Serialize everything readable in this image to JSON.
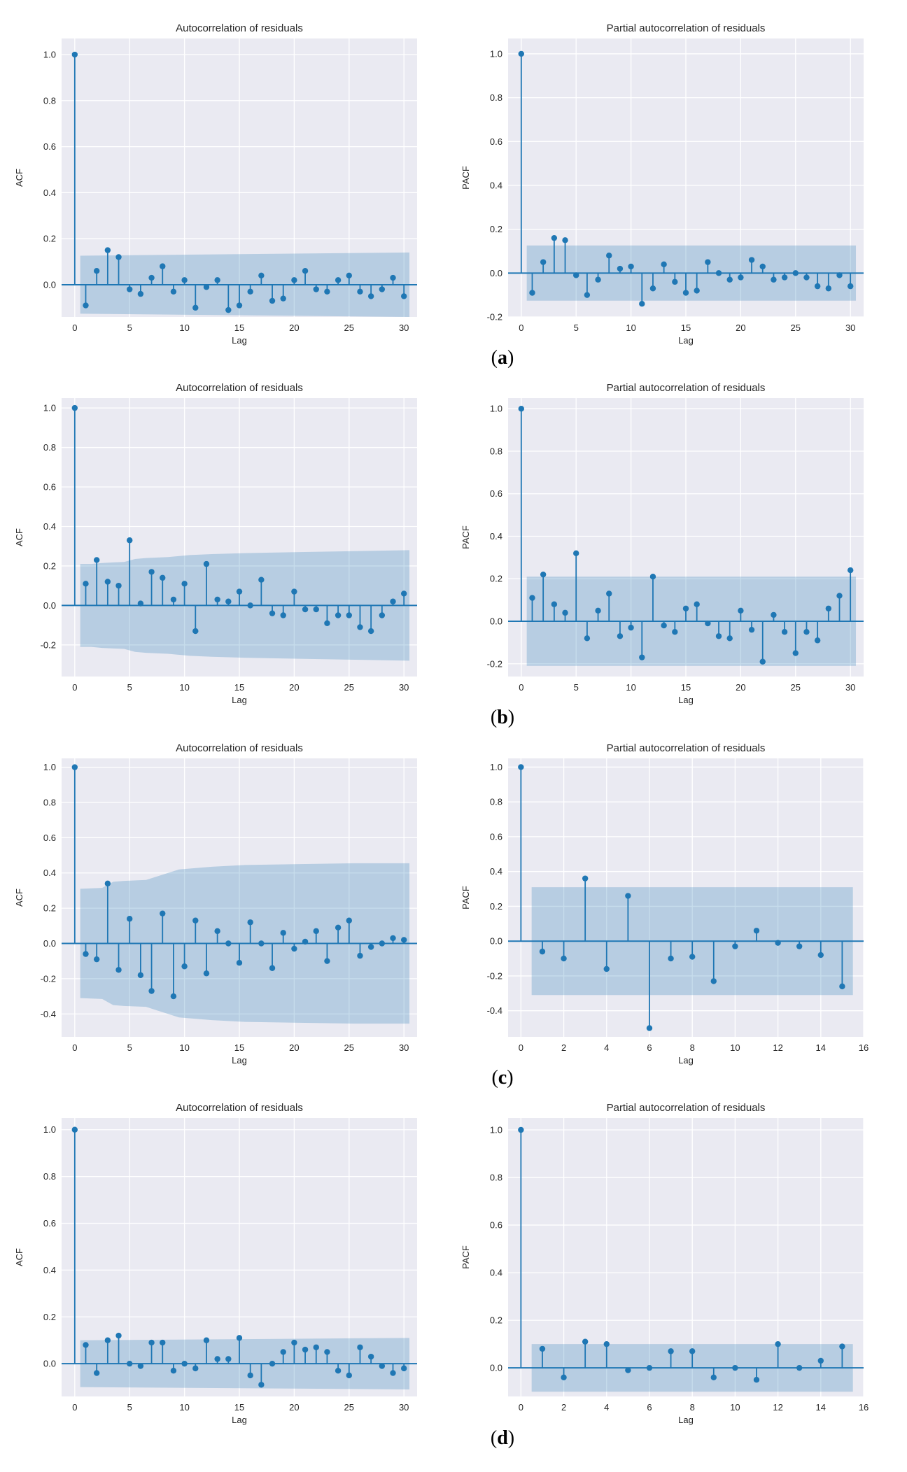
{
  "colors": {
    "stem": "#1f77b4",
    "band": "#a9c4de",
    "axes_bg": "#eaeaf2",
    "grid": "#ffffff",
    "text": "#262626"
  },
  "panel_labels": [
    {
      "paren_open": "(",
      "letter": "a",
      "paren_close": ")"
    },
    {
      "paren_open": "(",
      "letter": "b",
      "paren_close": ")"
    },
    {
      "paren_open": "(",
      "letter": "c",
      "paren_close": ")"
    },
    {
      "paren_open": "(",
      "letter": "d",
      "paren_close": ")"
    }
  ],
  "chart_data": [
    {
      "type": "stem",
      "title": "Autocorrelation of residuals",
      "xlabel": "Lag",
      "ylabel": "ACF",
      "xlim": [
        -1.2,
        31.2
      ],
      "ylim": [
        -0.14,
        1.07
      ],
      "xticks": [
        0,
        5,
        10,
        15,
        20,
        25,
        30
      ],
      "yticks": [
        0.0,
        0.2,
        0.4,
        0.6,
        0.8,
        1.0
      ],
      "lags": [
        0,
        1,
        2,
        3,
        4,
        5,
        6,
        7,
        8,
        9,
        10,
        11,
        12,
        13,
        14,
        15,
        16,
        17,
        18,
        19,
        20,
        21,
        22,
        23,
        24,
        25,
        26,
        27,
        28,
        29,
        30
      ],
      "values": [
        1.0,
        -0.09,
        0.06,
        0.15,
        0.12,
        -0.02,
        -0.04,
        0.03,
        0.08,
        -0.03,
        0.02,
        -0.1,
        -0.01,
        0.02,
        -0.11,
        -0.09,
        -0.03,
        0.04,
        -0.07,
        -0.06,
        0.02,
        0.06,
        -0.02,
        -0.03,
        0.02,
        0.04,
        -0.03,
        -0.05,
        -0.02,
        0.03,
        -0.05
      ],
      "band_x": [
        0.5,
        30.5
      ],
      "band_upper": [
        0.126,
        0.14
      ],
      "band_lower": [
        -0.126,
        -0.14
      ]
    },
    {
      "type": "stem",
      "title": "Partial autocorrelation of residuals",
      "xlabel": "Lag",
      "ylabel": "PACF",
      "xlim": [
        -1.2,
        31.2
      ],
      "ylim": [
        -0.2,
        1.07
      ],
      "xticks": [
        0,
        5,
        10,
        15,
        20,
        25,
        30
      ],
      "yticks": [
        -0.2,
        0.0,
        0.2,
        0.4,
        0.6,
        0.8,
        1.0
      ],
      "lags": [
        0,
        1,
        2,
        3,
        4,
        5,
        6,
        7,
        8,
        9,
        10,
        11,
        12,
        13,
        14,
        15,
        16,
        17,
        18,
        19,
        20,
        21,
        22,
        23,
        24,
        25,
        26,
        27,
        28,
        29,
        30
      ],
      "values": [
        1.0,
        -0.09,
        0.05,
        0.16,
        0.15,
        -0.01,
        -0.1,
        -0.03,
        0.08,
        0.02,
        0.03,
        -0.14,
        -0.07,
        0.04,
        -0.04,
        -0.09,
        -0.08,
        0.05,
        0.0,
        -0.03,
        -0.02,
        0.06,
        0.03,
        -0.03,
        -0.02,
        0.0,
        -0.02,
        -0.06,
        -0.07,
        -0.01,
        -0.06
      ],
      "band_x": [
        0.5,
        30.5
      ],
      "band_upper": [
        0.126,
        0.126
      ],
      "band_lower": [
        -0.126,
        -0.126
      ]
    },
    {
      "type": "stem",
      "title": "Autocorrelation of residuals",
      "xlabel": "Lag",
      "ylabel": "ACF",
      "xlim": [
        -1.2,
        31.2
      ],
      "ylim": [
        -0.36,
        1.05
      ],
      "xticks": [
        0,
        5,
        10,
        15,
        20,
        25,
        30
      ],
      "yticks": [
        -0.2,
        0.0,
        0.2,
        0.4,
        0.6,
        0.8,
        1.0
      ],
      "lags": [
        0,
        1,
        2,
        3,
        4,
        5,
        6,
        7,
        8,
        9,
        10,
        11,
        12,
        13,
        14,
        15,
        16,
        17,
        18,
        19,
        20,
        21,
        22,
        23,
        24,
        25,
        26,
        27,
        28,
        29,
        30
      ],
      "values": [
        1.0,
        0.11,
        0.23,
        0.12,
        0.1,
        0.33,
        0.01,
        0.17,
        0.14,
        0.03,
        0.11,
        -0.13,
        0.21,
        0.03,
        0.02,
        0.07,
        0.0,
        0.13,
        -0.04,
        -0.05,
        0.07,
        -0.02,
        -0.02,
        -0.09,
        -0.05,
        -0.05,
        -0.11,
        -0.13,
        -0.05,
        0.02,
        0.06
      ],
      "band_x": [
        0.5,
        1.5,
        2.5,
        3.5,
        4.5,
        5.5,
        6.5,
        8.5,
        10.5,
        12.5,
        15.5,
        20.5,
        25.5,
        30.5
      ],
      "band_upper": [
        0.21,
        0.21,
        0.215,
        0.218,
        0.22,
        0.235,
        0.24,
        0.245,
        0.255,
        0.26,
        0.265,
        0.27,
        0.275,
        0.28
      ],
      "band_lower": [
        -0.21,
        -0.21,
        -0.215,
        -0.218,
        -0.22,
        -0.235,
        -0.24,
        -0.245,
        -0.255,
        -0.26,
        -0.265,
        -0.27,
        -0.275,
        -0.28
      ]
    },
    {
      "type": "stem",
      "title": "Partial autocorrelation of residuals",
      "xlabel": "Lag",
      "ylabel": "PACF",
      "xlim": [
        -1.2,
        31.2
      ],
      "ylim": [
        -0.26,
        1.05
      ],
      "xticks": [
        0,
        5,
        10,
        15,
        20,
        25,
        30
      ],
      "yticks": [
        -0.2,
        0.0,
        0.2,
        0.4,
        0.6,
        0.8,
        1.0
      ],
      "lags": [
        0,
        1,
        2,
        3,
        4,
        5,
        6,
        7,
        8,
        9,
        10,
        11,
        12,
        13,
        14,
        15,
        16,
        17,
        18,
        19,
        20,
        21,
        22,
        23,
        24,
        25,
        26,
        27,
        28,
        29,
        30
      ],
      "values": [
        1.0,
        0.11,
        0.22,
        0.08,
        0.04,
        0.32,
        -0.08,
        0.05,
        0.13,
        -0.07,
        -0.03,
        -0.17,
        0.21,
        -0.02,
        -0.05,
        0.06,
        0.08,
        -0.01,
        -0.07,
        -0.08,
        0.05,
        -0.04,
        -0.19,
        0.03,
        -0.05,
        -0.15,
        -0.05,
        -0.09,
        0.06,
        0.12,
        0.24
      ],
      "band_x": [
        0.5,
        30.5
      ],
      "band_upper": [
        0.21,
        0.21
      ],
      "band_lower": [
        -0.21,
        -0.21
      ]
    },
    {
      "type": "stem",
      "title": "Autocorrelation of residuals",
      "xlabel": "Lag",
      "ylabel": "ACF",
      "xlim": [
        -1.2,
        31.2
      ],
      "ylim": [
        -0.53,
        1.05
      ],
      "xticks": [
        0,
        5,
        10,
        15,
        20,
        25,
        30
      ],
      "yticks": [
        -0.4,
        -0.2,
        0.0,
        0.2,
        0.4,
        0.6,
        0.8,
        1.0
      ],
      "lags": [
        0,
        1,
        2,
        3,
        4,
        5,
        6,
        7,
        8,
        9,
        10,
        11,
        12,
        13,
        14,
        15,
        16,
        17,
        18,
        19,
        20,
        21,
        22,
        23,
        24,
        25,
        26,
        27,
        28,
        29,
        30
      ],
      "values": [
        1.0,
        -0.06,
        -0.09,
        0.34,
        -0.15,
        0.14,
        -0.18,
        -0.27,
        0.17,
        -0.3,
        -0.13,
        0.13,
        -0.17,
        0.07,
        0.0,
        -0.11,
        0.12,
        0.0,
        -0.14,
        0.06,
        -0.03,
        0.01,
        0.07,
        -0.1,
        0.09,
        0.13,
        -0.07,
        -0.02,
        0.0,
        0.03,
        0.02
      ],
      "band_x": [
        0.5,
        2.5,
        3.5,
        4.5,
        6.5,
        7.5,
        8.5,
        9.5,
        12.5,
        15.5,
        20.5,
        25.5,
        30.5
      ],
      "band_upper": [
        0.31,
        0.315,
        0.35,
        0.355,
        0.36,
        0.38,
        0.4,
        0.42,
        0.435,
        0.445,
        0.45,
        0.455,
        0.455
      ],
      "band_lower": [
        -0.31,
        -0.315,
        -0.35,
        -0.355,
        -0.36,
        -0.38,
        -0.4,
        -0.42,
        -0.435,
        -0.445,
        -0.45,
        -0.455,
        -0.455
      ]
    },
    {
      "type": "stem",
      "title": "Partial autocorrelation of residuals",
      "xlabel": "Lag",
      "ylabel": "PACF",
      "xlim": [
        -0.6,
        16.0
      ],
      "ylim": [
        -0.55,
        1.05
      ],
      "xticks": [
        0,
        2,
        4,
        6,
        8,
        10,
        12,
        14,
        16
      ],
      "yticks": [
        -0.4,
        -0.2,
        0.0,
        0.2,
        0.4,
        0.6,
        0.8,
        1.0
      ],
      "lags": [
        0,
        1,
        2,
        3,
        4,
        5,
        6,
        7,
        8,
        9,
        10,
        11,
        12,
        13,
        14,
        15
      ],
      "values": [
        1.0,
        -0.06,
        -0.1,
        0.36,
        -0.16,
        0.26,
        -0.5,
        -0.1,
        -0.09,
        -0.23,
        -0.03,
        0.06,
        -0.01,
        -0.03,
        -0.08,
        -0.26
      ],
      "band_x": [
        0.5,
        15.5
      ],
      "band_upper": [
        0.31,
        0.31
      ],
      "band_lower": [
        -0.31,
        -0.31
      ]
    },
    {
      "type": "stem",
      "title": "Autocorrelation of residuals",
      "xlabel": "Lag",
      "ylabel": "ACF",
      "xlim": [
        -1.2,
        31.2
      ],
      "ylim": [
        -0.14,
        1.05
      ],
      "xticks": [
        0,
        5,
        10,
        15,
        20,
        25,
        30
      ],
      "yticks": [
        0.0,
        0.2,
        0.4,
        0.6,
        0.8,
        1.0
      ],
      "lags": [
        0,
        1,
        2,
        3,
        4,
        5,
        6,
        7,
        8,
        9,
        10,
        11,
        12,
        13,
        14,
        15,
        16,
        17,
        18,
        19,
        20,
        21,
        22,
        23,
        24,
        25,
        26,
        27,
        28,
        29,
        30
      ],
      "values": [
        1.0,
        0.08,
        -0.04,
        0.1,
        0.12,
        0.0,
        -0.01,
        0.09,
        0.09,
        -0.03,
        0.0,
        -0.02,
        0.1,
        0.02,
        0.02,
        0.11,
        -0.05,
        -0.09,
        0.0,
        0.05,
        0.09,
        0.06,
        0.07,
        0.05,
        -0.03,
        -0.05,
        0.07,
        0.03,
        -0.01,
        -0.04,
        -0.02
      ],
      "band_x": [
        0.5,
        30.5
      ],
      "band_upper": [
        0.1,
        0.11
      ],
      "band_lower": [
        -0.1,
        -0.11
      ]
    },
    {
      "type": "stem",
      "title": "Partial autocorrelation of residuals",
      "xlabel": "Lag",
      "ylabel": "PACF",
      "xlim": [
        -0.6,
        16.0
      ],
      "ylim": [
        -0.12,
        1.05
      ],
      "xticks": [
        0,
        2,
        4,
        6,
        8,
        10,
        12,
        14,
        16
      ],
      "yticks": [
        0.0,
        0.2,
        0.4,
        0.6,
        0.8,
        1.0
      ],
      "lags": [
        0,
        1,
        2,
        3,
        4,
        5,
        6,
        7,
        8,
        9,
        10,
        11,
        12,
        13,
        14,
        15
      ],
      "values": [
        1.0,
        0.08,
        -0.04,
        0.11,
        0.1,
        -0.01,
        0.0,
        0.07,
        0.07,
        -0.04,
        0.0,
        -0.05,
        0.1,
        0.0,
        0.03,
        0.09
      ],
      "band_x": [
        0.5,
        15.5
      ],
      "band_upper": [
        0.1,
        0.1
      ],
      "band_lower": [
        -0.1,
        -0.1
      ]
    }
  ]
}
